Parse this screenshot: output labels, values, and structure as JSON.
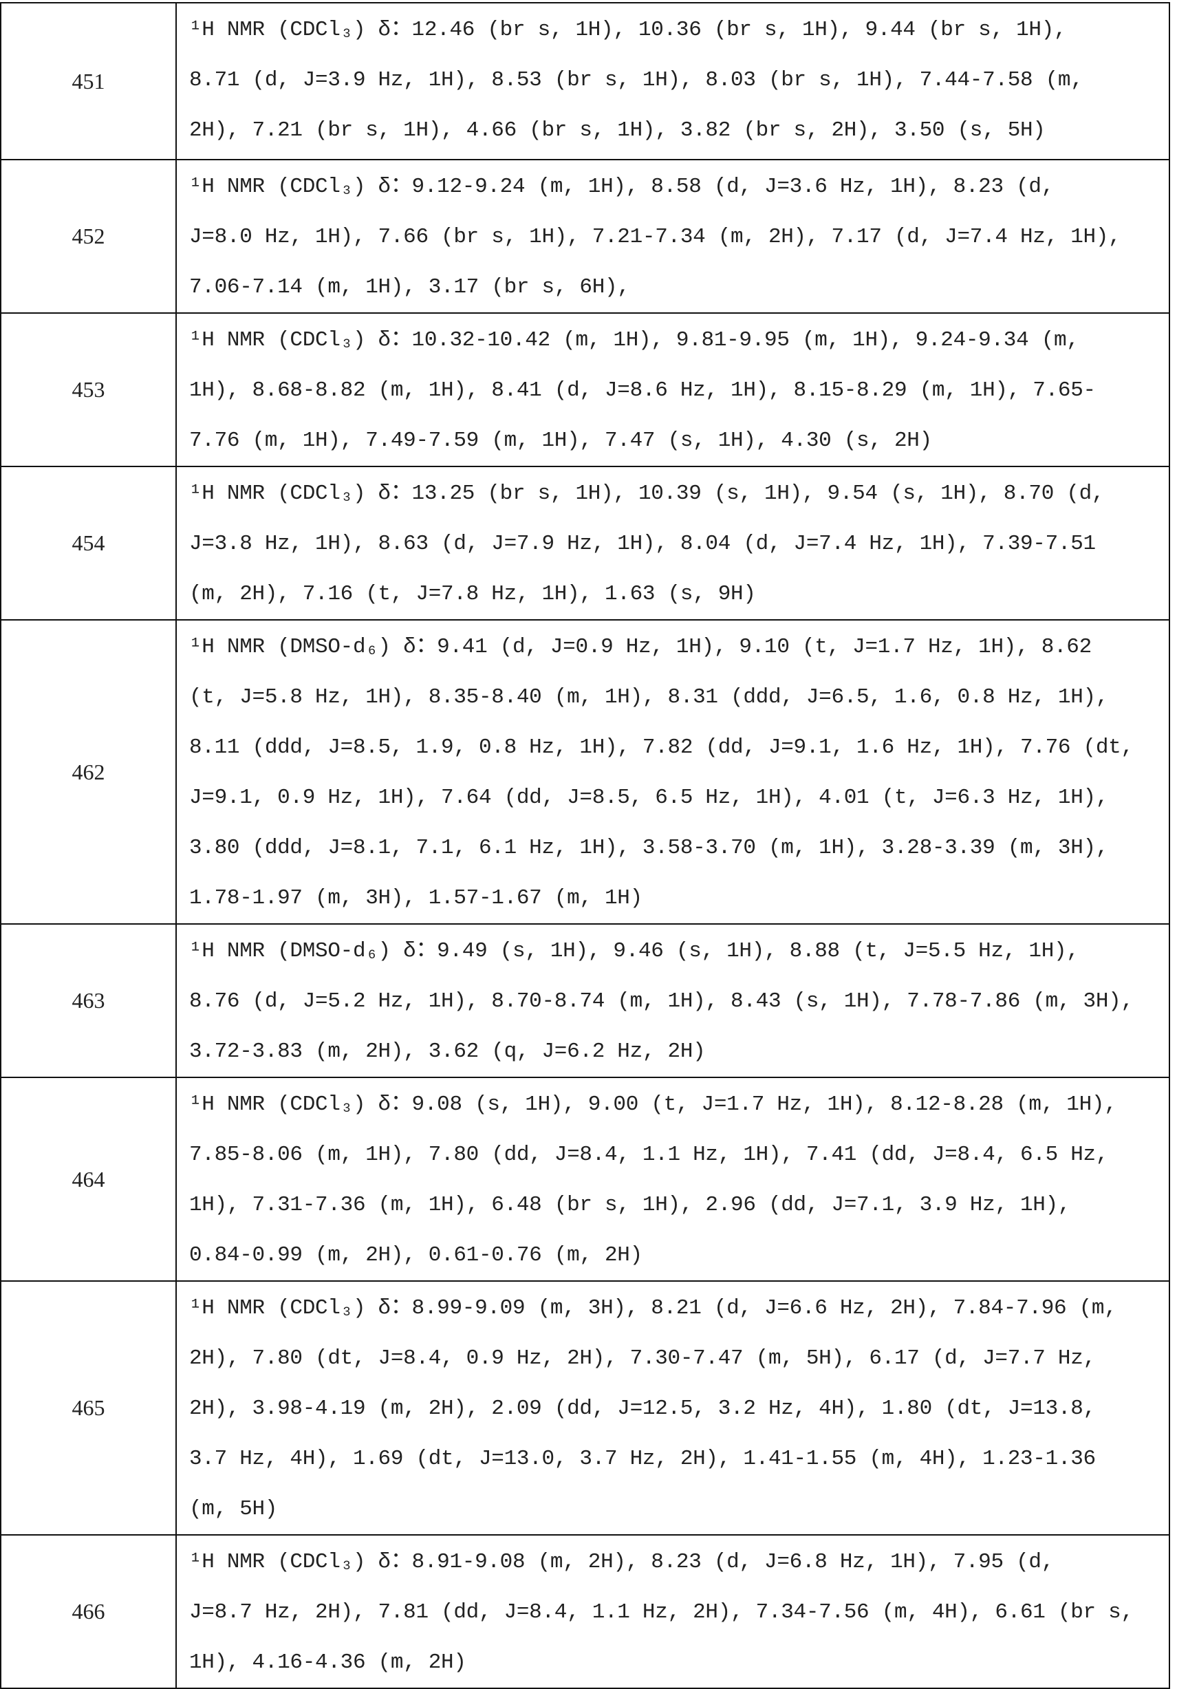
{
  "rows": [
    {
      "id": "451",
      "lines": [
        "¹H NMR (CDCl₃) δ：12.46 (br s, 1H), 10.36 (br s, 1H), 9.44 (br s, 1H),",
        "8.71 (d, J=3.9 Hz, 1H), 8.53 (br s, 1H), 8.03 (br s, 1H), 7.44-7.58 (m,",
        "2H), 7.21 (br s, 1H), 4.66 (br s, 1H), 3.82 (br s, 2H), 3.50 (s, 5H)"
      ]
    },
    {
      "id": "452",
      "lines": [
        "¹H NMR (CDCl₃) δ：9.12-9.24 (m, 1H), 8.58 (d, J=3.6 Hz, 1H), 8.23 (d,",
        "J=8.0 Hz, 1H), 7.66 (br s, 1H), 7.21-7.34 (m, 2H), 7.17 (d, J=7.4 Hz, 1H),",
        "7.06-7.14 (m, 1H), 3.17 (br s, 6H),"
      ]
    },
    {
      "id": "453",
      "lines": [
        "¹H NMR (CDCl₃) δ：10.32-10.42 (m, 1H), 9.81-9.95 (m, 1H), 9.24-9.34 (m,",
        "1H), 8.68-8.82 (m, 1H), 8.41 (d, J=8.6 Hz, 1H), 8.15-8.29 (m, 1H), 7.65-",
        "7.76 (m, 1H), 7.49-7.59 (m, 1H), 7.47 (s, 1H), 4.30 (s, 2H)"
      ]
    },
    {
      "id": "454",
      "lines": [
        "¹H NMR (CDCl₃) δ：13.25 (br s, 1H), 10.39 (s, 1H), 9.54 (s, 1H), 8.70 (d,",
        "J=3.8 Hz, 1H), 8.63 (d, J=7.9 Hz, 1H), 8.04 (d, J=7.4 Hz, 1H), 7.39-7.51",
        "(m, 2H), 7.16 (t, J=7.8 Hz, 1H), 1.63 (s, 9H)"
      ]
    },
    {
      "id": "462",
      "lines": [
        "¹H NMR (DMSO-d₆) δ：9.41 (d, J=0.9 Hz, 1H), 9.10 (t, J=1.7 Hz, 1H), 8.62",
        "(t, J=5.8 Hz, 1H), 8.35-8.40 (m, 1H), 8.31 (ddd, J=6.5, 1.6, 0.8 Hz, 1H),",
        "8.11 (ddd, J=8.5, 1.9, 0.8 Hz, 1H), 7.82 (dd, J=9.1, 1.6 Hz, 1H), 7.76 (dt,",
        "J=9.1, 0.9 Hz, 1H), 7.64 (dd, J=8.5, 6.5 Hz, 1H), 4.01 (t, J=6.3 Hz, 1H),",
        "3.80 (ddd, J=8.1, 7.1, 6.1 Hz, 1H), 3.58-3.70 (m, 1H), 3.28-3.39 (m, 3H),",
        "1.78-1.97 (m, 3H), 1.57-1.67 (m, 1H)"
      ]
    },
    {
      "id": "463",
      "lines": [
        "¹H NMR (DMSO-d₆) δ：9.49 (s, 1H), 9.46 (s, 1H), 8.88 (t, J=5.5 Hz, 1H),",
        "8.76 (d, J=5.2 Hz, 1H), 8.70-8.74 (m, 1H), 8.43 (s, 1H), 7.78-7.86 (m, 3H),",
        "3.72-3.83 (m, 2H), 3.62 (q, J=6.2 Hz, 2H)"
      ]
    },
    {
      "id": "464",
      "lines": [
        "¹H NMR (CDCl₃) δ：9.08 (s, 1H), 9.00 (t, J=1.7 Hz, 1H), 8.12-8.28 (m, 1H),",
        "7.85-8.06 (m, 1H), 7.80 (dd, J=8.4, 1.1 Hz, 1H), 7.41 (dd, J=8.4, 6.5 Hz,",
        "1H), 7.31-7.36 (m, 1H), 6.48 (br s, 1H), 2.96 (dd, J=7.1, 3.9 Hz, 1H),",
        "0.84-0.99 (m, 2H), 0.61-0.76 (m, 2H)"
      ]
    },
    {
      "id": "465",
      "lines": [
        "¹H NMR (CDCl₃) δ：8.99-9.09 (m, 3H), 8.21 (d, J=6.6 Hz, 2H), 7.84-7.96 (m,",
        "2H), 7.80 (dt, J=8.4, 0.9 Hz, 2H), 7.30-7.47 (m, 5H), 6.17 (d, J=7.7 Hz,",
        "2H), 3.98-4.19 (m, 2H), 2.09 (dd, J=12.5, 3.2 Hz, 4H), 1.80 (dt, J=13.8,",
        "3.7 Hz, 4H), 1.69 (dt, J=13.0, 3.7 Hz, 2H), 1.41-1.55 (m, 4H), 1.23-1.36",
        "(m, 5H)"
      ]
    },
    {
      "id": "466",
      "lines": [
        "¹H NMR (CDCl₃) δ：8.91-9.08 (m, 2H), 8.23 (d, J=6.8 Hz, 1H), 7.95 (d,",
        "J=8.7 Hz, 2H), 7.81 (dd, J=8.4, 1.1 Hz, 2H), 7.34-7.56 (m, 4H), 6.61 (br s,",
        "1H), 4.16-4.36 (m, 2H)"
      ]
    }
  ]
}
